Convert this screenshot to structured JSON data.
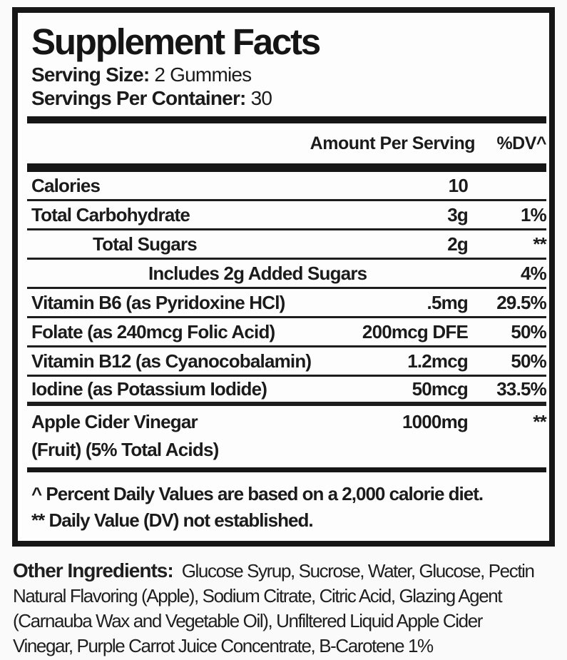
{
  "label": {
    "title": "Supplement Facts",
    "serving_size_label": "Serving Size:",
    "serving_size_value": "2 Gummies",
    "servings_per_container_label": "Servings Per Container:",
    "servings_per_container_value": "30",
    "columns": {
      "amount": "Amount Per Serving",
      "dv": "%DV^"
    },
    "rows": [
      {
        "name": "Calories",
        "amount": "10",
        "dv": ""
      },
      {
        "name": "Total Carbohydrate",
        "amount": "3g",
        "dv": "1%"
      },
      {
        "name": "Total Sugars",
        "amount": "2g",
        "dv": "**"
      },
      {
        "name": "Includes 2g Added Sugars",
        "amount": "",
        "dv": "4%"
      },
      {
        "name": "Vitamin B6 (as Pyridoxine HCl)",
        "amount": ".5mg",
        "dv": "29.5%"
      },
      {
        "name": "Folate (as 240mcg Folic Acid)",
        "amount": "200mcg DFE",
        "dv": "50%"
      },
      {
        "name": "Vitamin B12 (as Cyanocobalamin)",
        "amount": "1.2mcg",
        "dv": "50%"
      },
      {
        "name": "Iodine (as Potassium Iodide)",
        "amount": "50mcg",
        "dv": "33.5%"
      },
      {
        "name": "Apple Cider Vinegar",
        "name_line2": "(Fruit) (5% Total Acids)",
        "amount": "1000mg",
        "dv": "**"
      }
    ],
    "footnotes": [
      "^ Percent Daily Values are based on a 2,000 calorie diet.",
      "** Daily Value (DV) not established."
    ]
  },
  "other_ingredients": {
    "heading": "Other Ingredients:",
    "lines": [
      "Glucose Syrup, Sucrose, Water, Glucose, Pectin",
      "Natural Flavoring (Apple), Sodium Citrate, Citric Acid, Glazing Agent",
      "(Carnauba Wax and Vegetable Oil), Unfiltered Liquid Apple Cider",
      "Vinegar, Purple Carrot Juice Concentrate, B-Carotene 1%"
    ]
  },
  "colors": {
    "text": "#1b1b1b",
    "rule": "#161616",
    "page_background": "#fafafa",
    "panel_background": "#fdfdfd"
  }
}
